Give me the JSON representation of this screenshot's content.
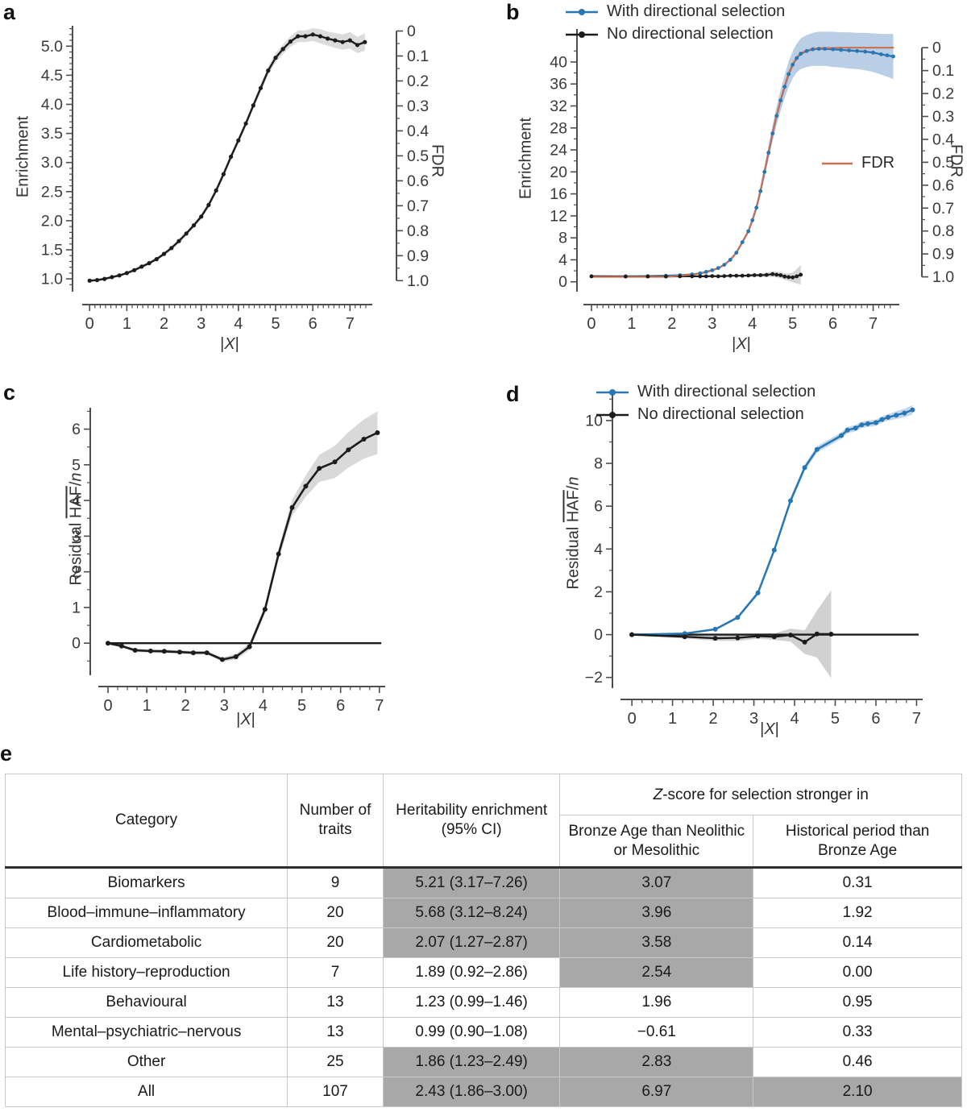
{
  "panels": {
    "a": {
      "letter": "a"
    },
    "b": {
      "letter": "b"
    },
    "c": {
      "letter": "c"
    },
    "d": {
      "letter": "d"
    },
    "e": {
      "letter": "e"
    }
  },
  "chart_data": [
    {
      "id": "a",
      "type": "line",
      "ylabel": "Enrichment",
      "ylabel_right": "FDR",
      "xlabel_parts": {
        "pre": "|",
        "x": "X",
        "post": "|"
      },
      "xlim": [
        -0.2,
        7.6
      ],
      "ylim": [
        0.78,
        5.35
      ],
      "xticks": [
        0,
        1,
        2,
        3,
        4,
        5,
        6,
        7
      ],
      "xtick_labels": [
        "0",
        "1",
        "2",
        "3",
        "4",
        "5",
        "6",
        "7"
      ],
      "x_minor": [
        0,
        7.5,
        0.1428
      ],
      "yticks": [
        1.0,
        1.5,
        2.0,
        2.5,
        3.0,
        3.5,
        4.0,
        4.5,
        5.0
      ],
      "ytick_labels": [
        "1.0",
        "1.5",
        "2.0",
        "2.5",
        "3.0",
        "3.5",
        "4.0",
        "4.5",
        "5.0"
      ],
      "y_minor": [
        0.9,
        5.3,
        0.1
      ],
      "right": {
        "ticks": [
          0,
          0.1,
          0.2,
          0.3,
          0.4,
          0.5,
          0.6,
          0.7,
          0.8,
          0.9,
          1.0
        ],
        "labels": [
          "0",
          "0.1",
          "0.2",
          "0.3",
          "0.4",
          "0.5",
          "0.6",
          "0.7",
          "0.8",
          "0.9",
          "1.0"
        ],
        "minor": 0.05,
        "map0": 5.26,
        "map1": 0.97
      },
      "series": [
        {
          "name": "Enrichment",
          "color": "#1c1c1c",
          "width": 2.4,
          "r": 2.6,
          "band_color": "#d6d6d6",
          "x": [
            0,
            0.2,
            0.4,
            0.6,
            0.8,
            1.0,
            1.2,
            1.4,
            1.6,
            1.8,
            2.0,
            2.2,
            2.4,
            2.6,
            2.8,
            3.0,
            3.2,
            3.4,
            3.6,
            3.8,
            4.0,
            4.2,
            4.4,
            4.6,
            4.8,
            5.0,
            5.2,
            5.4,
            5.6,
            5.8,
            6.0,
            6.2,
            6.4,
            6.6,
            6.8,
            7.0,
            7.2,
            7.4
          ],
          "y": [
            0.97,
            0.98,
            1.0,
            1.03,
            1.06,
            1.1,
            1.15,
            1.21,
            1.27,
            1.34,
            1.43,
            1.53,
            1.65,
            1.78,
            1.92,
            2.07,
            2.27,
            2.52,
            2.8,
            3.1,
            3.38,
            3.67,
            3.98,
            4.28,
            4.58,
            4.8,
            4.95,
            5.08,
            5.17,
            5.17,
            5.2,
            5.17,
            5.13,
            5.1,
            5.07,
            5.1,
            5.02,
            5.07
          ],
          "band": [
            0.02,
            0.02,
            0.02,
            0.02,
            0.02,
            0.02,
            0.03,
            0.03,
            0.03,
            0.03,
            0.03,
            0.03,
            0.04,
            0.04,
            0.04,
            0.04,
            0.05,
            0.05,
            0.05,
            0.05,
            0.06,
            0.06,
            0.06,
            0.07,
            0.07,
            0.08,
            0.08,
            0.09,
            0.1,
            0.1,
            0.11,
            0.12,
            0.12,
            0.13,
            0.13,
            0.14,
            0.14,
            0.15
          ]
        }
      ]
    },
    {
      "id": "b",
      "type": "line",
      "ylabel": "Enrichment",
      "ylabel_right": "FDR",
      "xlabel_parts": {
        "pre": "|",
        "x": "X",
        "post": "|"
      },
      "xlim": [
        -0.2,
        7.65
      ],
      "ylim": [
        -1.8,
        46
      ],
      "xticks": [
        0,
        1,
        2,
        3,
        4,
        5,
        6,
        7
      ],
      "xtick_labels": [
        "0",
        "1",
        "2",
        "3",
        "4",
        "5",
        "6",
        "7"
      ],
      "x_minor": [
        0,
        7.5,
        0.1428
      ],
      "yticks": [
        0,
        4,
        8,
        12,
        16,
        20,
        24,
        28,
        32,
        36,
        40
      ],
      "ytick_labels": [
        "0",
        "4",
        "8",
        "12",
        "16",
        "20",
        "24",
        "28",
        "32",
        "36",
        "40"
      ],
      "y_minor": [
        0,
        42,
        2
      ],
      "right": {
        "ticks": [
          0,
          0.1,
          0.2,
          0.3,
          0.4,
          0.5,
          0.6,
          0.7,
          0.8,
          0.9,
          1.0
        ],
        "labels": [
          "0",
          "0.1",
          "0.2",
          "0.3",
          "0.4",
          "0.5",
          "0.6",
          "0.7",
          "0.8",
          "0.9",
          "1.0"
        ],
        "minor": 0.05,
        "map0": 42.6,
        "map1": 0.9
      },
      "series": [
        {
          "name": "With directional selection",
          "color": "#2777b4",
          "width": 2.3,
          "r": 2.4,
          "band_color": "#aec6e1",
          "x": [
            0,
            0.85,
            1.4,
            1.85,
            2.2,
            2.5,
            2.7,
            2.85,
            3.0,
            3.15,
            3.3,
            3.45,
            3.6,
            3.75,
            3.9,
            4.0,
            4.1,
            4.2,
            4.3,
            4.4,
            4.5,
            4.6,
            4.7,
            4.8,
            4.9,
            5.0,
            5.1,
            5.2,
            5.35,
            5.5,
            5.65,
            5.8,
            6.0,
            6.2,
            6.4,
            6.6,
            6.8,
            7.0,
            7.2,
            7.35,
            7.5
          ],
          "y": [
            1.0,
            1.0,
            1.05,
            1.1,
            1.2,
            1.35,
            1.55,
            1.8,
            2.1,
            2.5,
            3.1,
            4.0,
            5.3,
            7.2,
            9.2,
            11.2,
            13.5,
            16.5,
            20.0,
            23.5,
            27.0,
            30.2,
            33.0,
            35.5,
            37.8,
            39.5,
            40.7,
            41.5,
            42.0,
            42.3,
            42.4,
            42.4,
            42.3,
            42.2,
            42.1,
            42.0,
            41.9,
            41.7,
            41.4,
            41.2,
            41.0
          ],
          "band": [
            0.05,
            0.05,
            0.05,
            0.05,
            0.05,
            0.05,
            0.05,
            0.05,
            0.05,
            0.05,
            0.05,
            0.05,
            0.05,
            0.05,
            0.3,
            0.4,
            0.6,
            0.8,
            1.0,
            1.2,
            1.5,
            1.7,
            1.9,
            2.1,
            2.3,
            2.5,
            2.6,
            2.8,
            2.9,
            3.0,
            3.1,
            3.1,
            3.2,
            3.2,
            3.3,
            3.3,
            3.4,
            3.5,
            3.7,
            3.9,
            4.1
          ]
        },
        {
          "name": "No directional selection",
          "color": "#1c1c1c",
          "width": 2.2,
          "r": 2.4,
          "band_color": "#cfcfcf",
          "x": [
            0,
            0.85,
            1.4,
            1.85,
            2.2,
            2.5,
            2.7,
            2.85,
            3.0,
            3.15,
            3.3,
            3.45,
            3.6,
            3.75,
            3.9,
            4.05,
            4.2,
            4.35,
            4.5,
            4.6,
            4.7,
            4.8,
            4.9,
            5.0,
            5.1,
            5.2
          ],
          "y": [
            1.0,
            0.95,
            0.95,
            0.95,
            1.0,
            1.0,
            1.0,
            1.0,
            1.05,
            1.0,
            1.05,
            1.1,
            1.1,
            1.1,
            1.15,
            1.2,
            1.2,
            1.25,
            1.4,
            1.3,
            1.2,
            0.95,
            0.85,
            0.8,
            1.0,
            1.3
          ],
          "band": [
            0.1,
            0.1,
            0.1,
            0.1,
            0.1,
            0.1,
            0.1,
            0.1,
            0.1,
            0.12,
            0.12,
            0.15,
            0.15,
            0.2,
            0.2,
            0.25,
            0.3,
            0.4,
            0.5,
            0.5,
            0.55,
            0.6,
            0.7,
            0.9,
            1.3,
            1.8
          ]
        },
        {
          "name": "FDR",
          "color": "#c96f53",
          "width": 2.1,
          "axis": "right",
          "marker": false,
          "x": [
            0,
            0.85,
            1.4,
            1.85,
            2.2,
            2.5,
            2.7,
            2.85,
            3.0,
            3.15,
            3.3,
            3.45,
            3.6,
            3.75,
            3.9,
            4.0,
            4.1,
            4.2,
            4.3,
            4.4,
            4.5,
            4.6,
            4.7,
            4.8,
            4.9,
            5.0,
            5.1,
            5.2,
            5.35,
            5.5,
            5.65,
            5.8,
            6.0,
            6.2,
            6.4,
            6.6,
            6.8,
            7.0,
            7.2,
            7.35,
            7.5
          ],
          "y": [
            1,
            1,
            1,
            1,
            0.995,
            0.99,
            0.985,
            0.98,
            0.972,
            0.962,
            0.948,
            0.926,
            0.895,
            0.85,
            0.8,
            0.752,
            0.697,
            0.625,
            0.54,
            0.456,
            0.372,
            0.295,
            0.228,
            0.168,
            0.112,
            0.072,
            0.043,
            0.024,
            0.012,
            0.005,
            0.002,
            0.001,
            0.001,
            0,
            0,
            0,
            0,
            0,
            0,
            0,
            0
          ]
        }
      ]
    },
    {
      "id": "c",
      "type": "line",
      "ylabel_parts": {
        "pre": "Residual ",
        "over": "HAF",
        "slash": "/",
        "n": "n"
      },
      "xlabel_parts": {
        "pre": "|",
        "x": "X",
        "post": "|"
      },
      "xlim": [
        -0.25,
        7.15
      ],
      "ylim": [
        -0.9,
        6.6
      ],
      "xticks": [
        0,
        1,
        2,
        3,
        4,
        5,
        6,
        7
      ],
      "xtick_labels": [
        "0",
        "1",
        "2",
        "3",
        "4",
        "5",
        "6",
        "7"
      ],
      "x_minor": [
        0,
        7.0,
        0.25
      ],
      "yticks": [
        0,
        1,
        2,
        3,
        4,
        5,
        6
      ],
      "ytick_labels": [
        "0",
        "1",
        "2",
        "3",
        "4",
        "5",
        "6"
      ],
      "y_minor": [
        -0.5,
        6.5,
        0.5
      ],
      "zero_line": [
        0,
        7.05
      ],
      "series": [
        {
          "name": "Residual HAF/n",
          "color": "#1c1c1c",
          "width": 2.6,
          "r": 3,
          "band_color": "#d2d2d2",
          "x": [
            0,
            0.35,
            0.7,
            1.1,
            1.45,
            1.85,
            2.2,
            2.55,
            2.95,
            3.3,
            3.65,
            4.05,
            4.4,
            4.75,
            5.1,
            5.45,
            5.85,
            6.2,
            6.6,
            6.95
          ],
          "y": [
            0,
            -0.08,
            -0.2,
            -0.22,
            -0.23,
            -0.25,
            -0.27,
            -0.27,
            -0.46,
            -0.38,
            -0.1,
            0.95,
            2.5,
            3.8,
            4.4,
            4.9,
            5.08,
            5.42,
            5.72,
            5.9
          ],
          "band": [
            0.03,
            0.04,
            0.05,
            0.05,
            0.05,
            0.05,
            0.05,
            0.05,
            0.06,
            0.08,
            0.1,
            0.12,
            0.15,
            0.22,
            0.3,
            0.38,
            0.45,
            0.5,
            0.55,
            0.6
          ]
        }
      ]
    },
    {
      "id": "d",
      "type": "line",
      "ylabel_parts": {
        "pre": "Residual ",
        "over": "HAF",
        "slash": "/",
        "n": "n"
      },
      "xlabel_parts": {
        "pre": "|",
        "x": "X",
        "post": "|"
      },
      "xlim": [
        -0.28,
        7.15
      ],
      "ylim": [
        -2.5,
        11.2
      ],
      "xticks": [
        0,
        1,
        2,
        3,
        4,
        5,
        6,
        7
      ],
      "xtick_labels": [
        "0",
        "1",
        "2",
        "3",
        "4",
        "5",
        "6",
        "7"
      ],
      "x_minor": [
        0,
        7.0,
        0.25
      ],
      "yticks": [
        -2,
        0,
        2,
        4,
        6,
        8,
        10
      ],
      "ytick_labels": [
        "−2",
        "0",
        "2",
        "4",
        "6",
        "8",
        "10"
      ],
      "y_minor": [
        -2,
        11,
        1
      ],
      "zero_line": [
        0,
        7.05
      ],
      "series": [
        {
          "name": "With directional selection",
          "color": "#2777b4",
          "width": 2.5,
          "r": 3,
          "band_color": "#b9cfe6",
          "x": [
            0,
            1.3,
            2.05,
            2.6,
            3.1,
            3.5,
            3.9,
            4.25,
            4.55,
            5.15,
            5.3,
            5.5,
            5.65,
            5.8,
            6.0,
            6.15,
            6.3,
            6.5,
            6.7,
            6.9
          ],
          "y": [
            0,
            0.05,
            0.25,
            0.8,
            1.95,
            3.95,
            6.25,
            7.8,
            8.65,
            9.3,
            9.55,
            9.65,
            9.8,
            9.85,
            9.9,
            10.05,
            10.15,
            10.25,
            10.35,
            10.5
          ],
          "band": [
            0.03,
            0.03,
            0.05,
            0.07,
            0.1,
            0.12,
            0.15,
            0.15,
            0.15,
            0.15,
            0.15,
            0.15,
            0.15,
            0.15,
            0.15,
            0.15,
            0.15,
            0.18,
            0.2,
            0.22
          ]
        },
        {
          "name": "No directional selection",
          "color": "#1c1c1c",
          "width": 2.4,
          "r": 3,
          "band_color": "#c9c9c9",
          "x": [
            0,
            1.3,
            2.05,
            2.6,
            3.1,
            3.5,
            3.9,
            4.25,
            4.55,
            4.9
          ],
          "y": [
            0,
            -0.1,
            -0.17,
            -0.15,
            -0.07,
            -0.1,
            -0.02,
            -0.35,
            0.03,
            0.02
          ],
          "band": [
            0.04,
            0.08,
            0.12,
            0.15,
            0.12,
            0.15,
            0.3,
            0.55,
            1.1,
            2.05
          ]
        }
      ]
    },
    {
      "id": "e",
      "type": "table",
      "header": {
        "category": "Category",
        "n": "Number of traits",
        "heritability": "Heritability enrichment (95% CI)",
        "zscore_prefix": "Z",
        "zscore_rest": "-score for selection stronger in",
        "z_bronze": "Bronze Age than Neolithic or Mesolithic",
        "z_hist": "Historical period than Bronze Age"
      },
      "rows": [
        {
          "category": "Biomarkers",
          "n": "9",
          "heritability": "5.21 (3.17–7.26)",
          "z_bronze": "3.07",
          "z_hist": "0.31",
          "shaded": [
            "heritability",
            "z_bronze"
          ]
        },
        {
          "category": "Blood–immune–inflammatory",
          "n": "20",
          "heritability": "5.68 (3.12–8.24)",
          "z_bronze": "3.96",
          "z_hist": "1.92",
          "shaded": [
            "heritability",
            "z_bronze"
          ]
        },
        {
          "category": "Cardiometabolic",
          "n": "20",
          "heritability": "2.07 (1.27–2.87)",
          "z_bronze": "3.58",
          "z_hist": "0.14",
          "shaded": [
            "heritability",
            "z_bronze"
          ]
        },
        {
          "category": "Life history–reproduction",
          "n": "7",
          "heritability": "1.89 (0.92–2.86)",
          "z_bronze": "2.54",
          "z_hist": "0.00",
          "shaded": [
            "z_bronze"
          ]
        },
        {
          "category": "Behavioural",
          "n": "13",
          "heritability": "1.23 (0.99–1.46)",
          "z_bronze": "1.96",
          "z_hist": "0.95",
          "shaded": []
        },
        {
          "category": "Mental–psychiatric–nervous",
          "n": "13",
          "heritability": "0.99 (0.90–1.08)",
          "z_bronze": "−0.61",
          "z_hist": "0.33",
          "shaded": []
        },
        {
          "category": "Other",
          "n": "25",
          "heritability": "1.86 (1.23–2.49)",
          "z_bronze": "2.83",
          "z_hist": "0.46",
          "shaded": [
            "heritability",
            "z_bronze"
          ]
        },
        {
          "category": "All",
          "n": "107",
          "heritability": "2.43 (1.86–3.00)",
          "z_bronze": "6.97",
          "z_hist": "2.10",
          "shaded": [
            "heritability",
            "z_bronze",
            "z_hist"
          ]
        }
      ]
    }
  ]
}
